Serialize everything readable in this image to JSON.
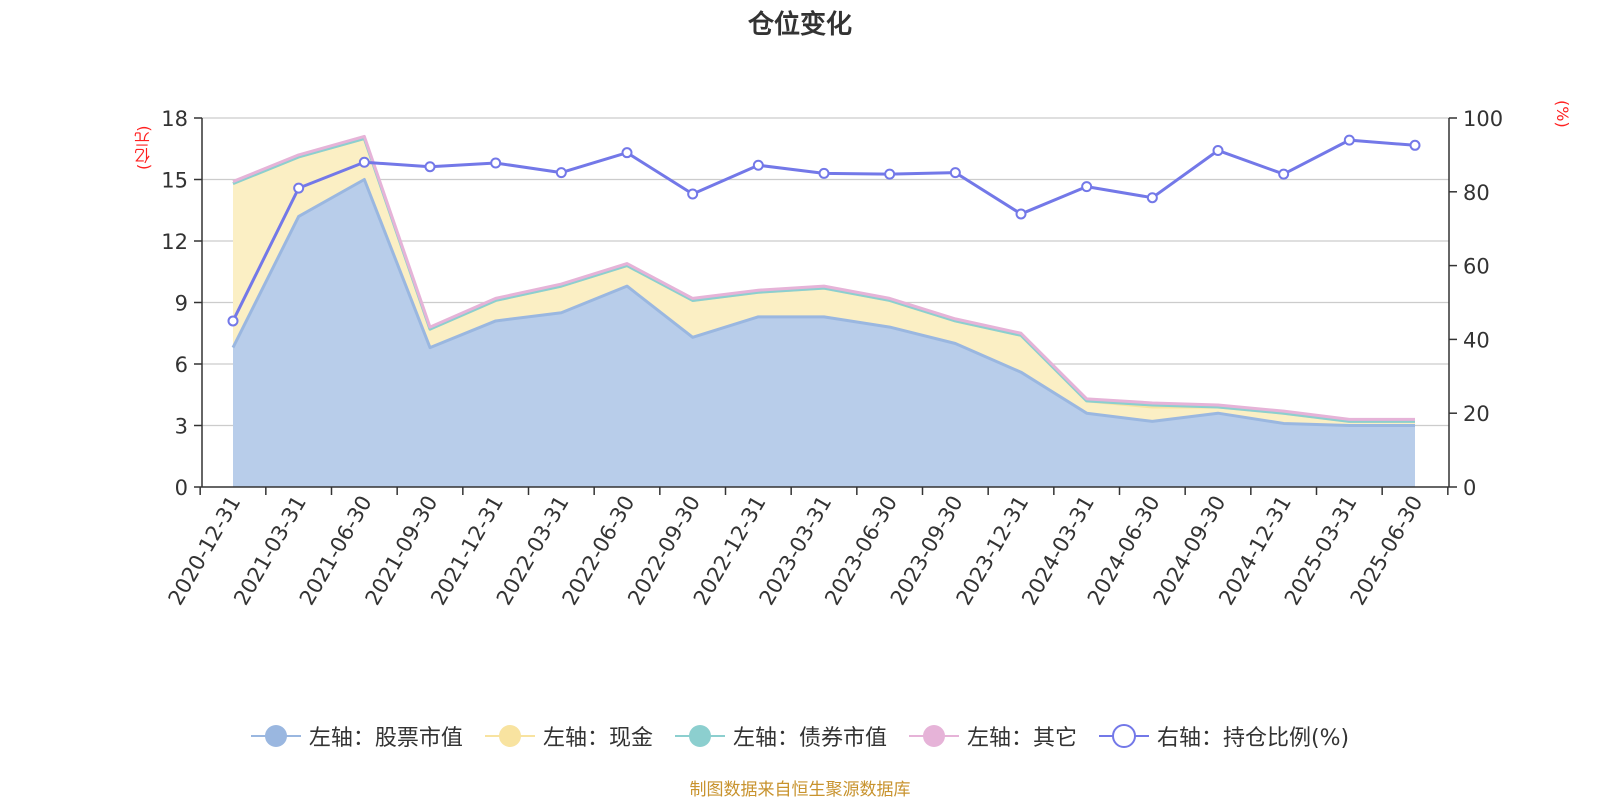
{
  "title": "仓位变化",
  "source": "制图数据来自恒生聚源数据库",
  "units": {
    "left": "(亿元)",
    "right": "(%)"
  },
  "colors": {
    "stock": "#9ab7e0",
    "stock_fill": "#b8cdea",
    "cash": "#f8e3a0",
    "cash_fill": "#fbefc4",
    "bond": "#8ccfcf",
    "other": "#e6b3d8",
    "ratio": "#7378e8",
    "grid": "#cccccc",
    "axis": "#333333"
  },
  "legend": [
    {
      "label": "左轴：股票市值",
      "icon": "filled-circle-icon",
      "color": "#9ab7e0"
    },
    {
      "label": "左轴：现金",
      "icon": "filled-circle-icon",
      "color": "#f8e3a0"
    },
    {
      "label": "左轴：债券市值",
      "icon": "filled-circle-icon",
      "color": "#8ccfcf"
    },
    {
      "label": "左轴：其它",
      "icon": "filled-circle-icon",
      "color": "#e6b3d8"
    },
    {
      "label": "右轴：持仓比例(%)",
      "icon": "hollow-circle-icon",
      "color": "#7378e8"
    }
  ],
  "chart_data": {
    "type": "area",
    "categories": [
      "2020-12-31",
      "2021-03-31",
      "2021-06-30",
      "2021-09-30",
      "2021-12-31",
      "2022-03-31",
      "2022-06-30",
      "2022-09-30",
      "2022-12-31",
      "2023-03-31",
      "2023-06-30",
      "2023-09-30",
      "2023-12-31",
      "2024-03-31",
      "2024-06-30",
      "2024-09-30",
      "2024-12-31",
      "2025-03-31",
      "2025-06-30"
    ],
    "x_positions": [
      233,
      299,
      364,
      430,
      496,
      561,
      627,
      693,
      758,
      824,
      890,
      955,
      1021,
      1087,
      1152,
      1218,
      1284,
      1349,
      1415
    ],
    "y_left": {
      "min": 0,
      "max": 18,
      "ticks": [
        0,
        3,
        6,
        9,
        12,
        15,
        18
      ]
    },
    "y_right": {
      "min": 0,
      "max": 100,
      "ticks": [
        0,
        20,
        40,
        60,
        80,
        100
      ]
    },
    "series": [
      {
        "name": "左轴：股票市值",
        "axis": "left",
        "stack": true,
        "values": [
          6.8,
          13.2,
          15.0,
          6.8,
          8.1,
          8.5,
          9.8,
          7.3,
          8.3,
          8.3,
          7.8,
          7.0,
          5.6,
          3.6,
          3.2,
          3.6,
          3.1,
          3.0,
          3.0
        ]
      },
      {
        "name": "左轴：现金",
        "axis": "left",
        "stack": true,
        "values": [
          8.0,
          2.9,
          2.0,
          0.9,
          1.0,
          1.3,
          1.0,
          1.8,
          1.2,
          1.4,
          1.3,
          1.1,
          1.8,
          0.6,
          0.7,
          0.3,
          0.5,
          0.2,
          0.2
        ]
      },
      {
        "name": "左轴：债券市值",
        "axis": "left",
        "stack": true,
        "values": [
          0,
          0,
          0,
          0,
          0,
          0,
          0,
          0,
          0,
          0,
          0,
          0,
          0,
          0,
          0.1,
          0,
          0,
          0,
          0
        ]
      },
      {
        "name": "左轴：其它",
        "axis": "left",
        "stack": true,
        "values": [
          0.1,
          0.1,
          0.1,
          0.1,
          0.1,
          0.1,
          0.1,
          0.1,
          0.1,
          0.1,
          0.1,
          0.1,
          0.1,
          0.1,
          0.1,
          0.1,
          0.1,
          0.1,
          0.1
        ]
      },
      {
        "name": "右轴：持仓比例(%)",
        "axis": "right",
        "line": true,
        "values": [
          45.0,
          81.0,
          88.0,
          86.8,
          87.8,
          85.2,
          90.6,
          79.4,
          87.2,
          85.0,
          84.8,
          85.2,
          74.0,
          81.4,
          78.4,
          91.2,
          84.8,
          94.0,
          92.6
        ]
      }
    ],
    "grid": true,
    "legend_position": "bottom"
  }
}
